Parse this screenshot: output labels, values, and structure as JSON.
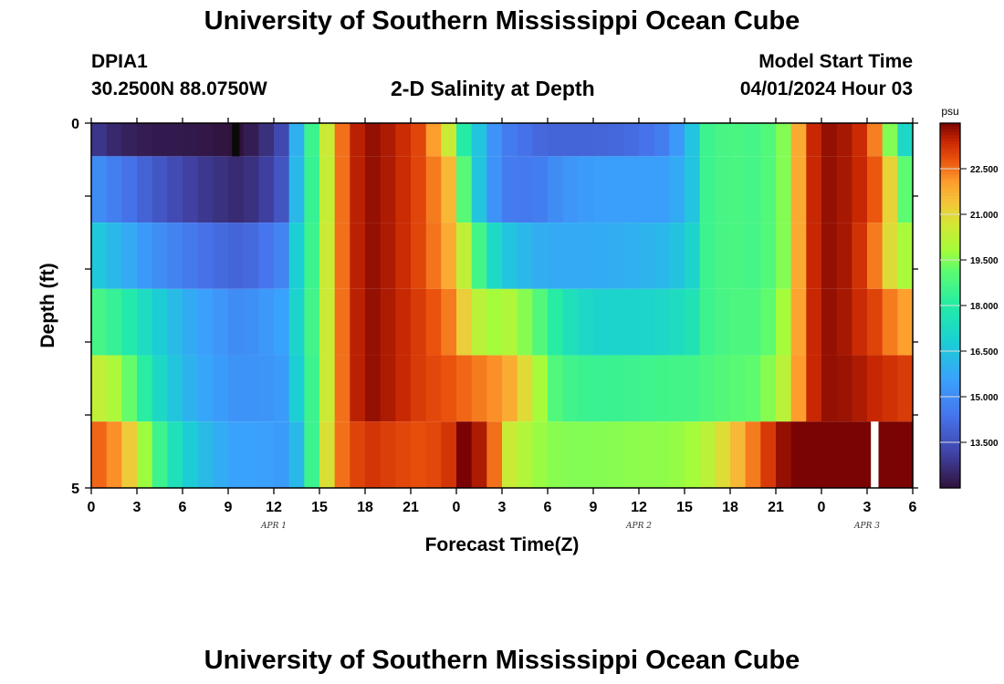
{
  "page": {
    "title": "University of Southern Mississippi Ocean Cube",
    "footer_title": "University of Southern Mississippi Ocean Cube"
  },
  "station": {
    "name": "DPIA1",
    "location": "30.2500N  88.0750W"
  },
  "model": {
    "start_label": "Model Start Time",
    "start_value": "04/01/2024 Hour 03"
  },
  "chart_data": {
    "type": "heatmap",
    "title": "2-D Salinity at Depth",
    "xlabel": "Forecast Time(Z)",
    "ylabel": "Depth (ft)",
    "x_tick_labels": [
      "0",
      "3",
      "6",
      "9",
      "12",
      "15",
      "18",
      "21",
      "0",
      "3",
      "6",
      "9",
      "12",
      "15",
      "18",
      "21",
      "0",
      "3",
      "6"
    ],
    "date_labels": [
      {
        "label": "APR 1",
        "hour": 12
      },
      {
        "label": "APR 2",
        "hour": 36
      },
      {
        "label": "APR 3",
        "hour": 51
      }
    ],
    "x_range_hours": [
      0,
      54
    ],
    "y_tick_labels": [
      "0",
      "5"
    ],
    "ylim": [
      0,
      5
    ],
    "depth_layers": [
      0,
      1,
      2,
      3,
      4,
      5
    ],
    "colorbar": {
      "unit": "psu",
      "ticks": [
        13.5,
        15.0,
        16.5,
        18.0,
        19.5,
        21.0,
        22.5
      ],
      "tick_labels": [
        "13.500",
        "15.000",
        "16.500",
        "18.000",
        "19.500",
        "21.000",
        "22.500"
      ],
      "vmin": 12.0,
      "vmax": 24.0
    },
    "profile_keys": {
      "hours": [
        0,
        2,
        4,
        6,
        8,
        9.5,
        11,
        12.5,
        13.5,
        14.5,
        15.5,
        16.5,
        17.5,
        18.5,
        20,
        22,
        23.5,
        24.5,
        25.5,
        26.5,
        27.5,
        29,
        30,
        31,
        33,
        36,
        38,
        39.5,
        40.5,
        42,
        44,
        45.5,
        47,
        48,
        49,
        50,
        51,
        52,
        53,
        54
      ],
      "layers": [
        [
          13.0,
          12.4,
          12.2,
          12.2,
          12.1,
          12.0,
          12.4,
          13.3,
          16.0,
          18.5,
          20.5,
          22.5,
          23.5,
          23.8,
          23.5,
          22.8,
          20.5,
          18.0,
          16.5,
          15.2,
          14.6,
          14.2,
          14.0,
          14.0,
          14.0,
          14.2,
          14.8,
          16.5,
          18.5,
          18.8,
          18.6,
          19.5,
          23.0,
          23.8,
          23.8,
          23.5,
          23.2,
          21.5,
          17.5,
          16.8
        ],
        [
          15.2,
          14.5,
          13.8,
          13.2,
          12.8,
          12.6,
          12.8,
          13.6,
          16.2,
          18.4,
          20.4,
          22.5,
          23.5,
          23.8,
          23.5,
          22.8,
          21.6,
          19.0,
          16.5,
          15.2,
          14.6,
          14.5,
          14.8,
          15.2,
          15.5,
          15.5,
          15.5,
          16.5,
          18.5,
          18.8,
          18.6,
          19.5,
          23.0,
          23.8,
          23.8,
          23.5,
          23.3,
          22.2,
          20.0,
          18.2
        ],
        [
          16.8,
          16.0,
          15.2,
          14.6,
          14.2,
          14.0,
          14.2,
          14.8,
          16.8,
          18.5,
          20.5,
          22.5,
          23.5,
          23.8,
          23.5,
          22.8,
          21.8,
          20.3,
          18.6,
          17.2,
          16.5,
          16.0,
          15.8,
          15.8,
          15.8,
          16.0,
          16.2,
          17.0,
          18.5,
          18.8,
          18.6,
          19.5,
          23.0,
          23.8,
          23.8,
          23.5,
          23.0,
          21.8,
          20.0,
          19.8
        ],
        [
          18.8,
          18.2,
          17.0,
          16.0,
          15.4,
          15.0,
          15.2,
          15.6,
          17.0,
          18.6,
          20.5,
          22.5,
          23.5,
          23.8,
          23.5,
          23.0,
          22.4,
          21.2,
          20.2,
          19.8,
          20.0,
          19.3,
          18.5,
          17.6,
          17.0,
          17.0,
          17.2,
          17.6,
          18.5,
          18.8,
          18.8,
          19.8,
          23.0,
          23.8,
          23.8,
          23.5,
          23.2,
          22.8,
          22.0,
          22.0
        ],
        [
          20.5,
          19.8,
          17.5,
          16.2,
          15.5,
          15.2,
          15.2,
          15.4,
          16.8,
          18.5,
          20.5,
          22.5,
          23.5,
          23.8,
          23.5,
          23.0,
          22.8,
          22.6,
          22.4,
          22.2,
          21.8,
          20.5,
          19.2,
          18.6,
          18.4,
          18.5,
          18.6,
          18.6,
          18.8,
          19.0,
          19.2,
          20.2,
          23.0,
          23.8,
          23.8,
          23.7,
          23.5,
          23.3,
          23.2,
          23.0
        ],
        [
          22.8,
          22.0,
          19.0,
          17.0,
          16.0,
          15.6,
          15.6,
          15.4,
          16.2,
          18.5,
          20.8,
          22.5,
          23.0,
          23.2,
          23.0,
          22.8,
          23.2,
          24.0,
          23.6,
          22.5,
          20.5,
          19.8,
          19.6,
          19.5,
          19.5,
          19.6,
          19.6,
          19.8,
          20.2,
          21.2,
          22.8,
          23.8,
          24.2,
          24.4,
          24.5,
          24.6,
          24.5,
          24.3,
          24.2,
          24.0
        ]
      ]
    },
    "missing_cells": [
      {
        "hour": 9.5,
        "layer": 0,
        "value": "below-scale"
      },
      {
        "hour": 51.5,
        "layer": 5,
        "value": "no-data"
      }
    ]
  }
}
